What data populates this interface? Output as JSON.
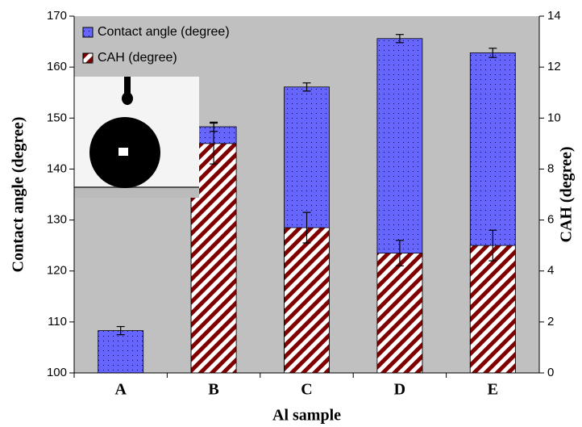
{
  "chart_data": {
    "type": "bar",
    "categories": [
      "A",
      "B",
      "C",
      "D",
      "E"
    ],
    "series": [
      {
        "name": "Contact angle (degree)",
        "color": "#6666ff",
        "values": [
          108.3,
          148.3,
          156.1,
          165.6,
          162.8
        ],
        "errors": [
          0.8,
          0.9,
          0.8,
          0.8,
          0.9
        ]
      },
      {
        "name": "CAH (degree)",
        "color": "#800000",
        "axis": "y2",
        "values": [
          null,
          9.0,
          5.7,
          4.7,
          5.0
        ],
        "errors": [
          null,
          0.8,
          0.6,
          0.5,
          0.6
        ]
      }
    ],
    "xlabel": "Al sample",
    "ylabel": "Contact angle (degree)",
    "y2label": "CAH (degree)",
    "ylim": [
      100,
      170
    ],
    "yticks": [
      100,
      110,
      120,
      130,
      140,
      150,
      160,
      170
    ],
    "y2lim": [
      0,
      14
    ],
    "y2ticks": [
      0,
      2,
      4,
      6,
      8,
      10,
      12,
      14
    ],
    "legend": "upper-left"
  }
}
